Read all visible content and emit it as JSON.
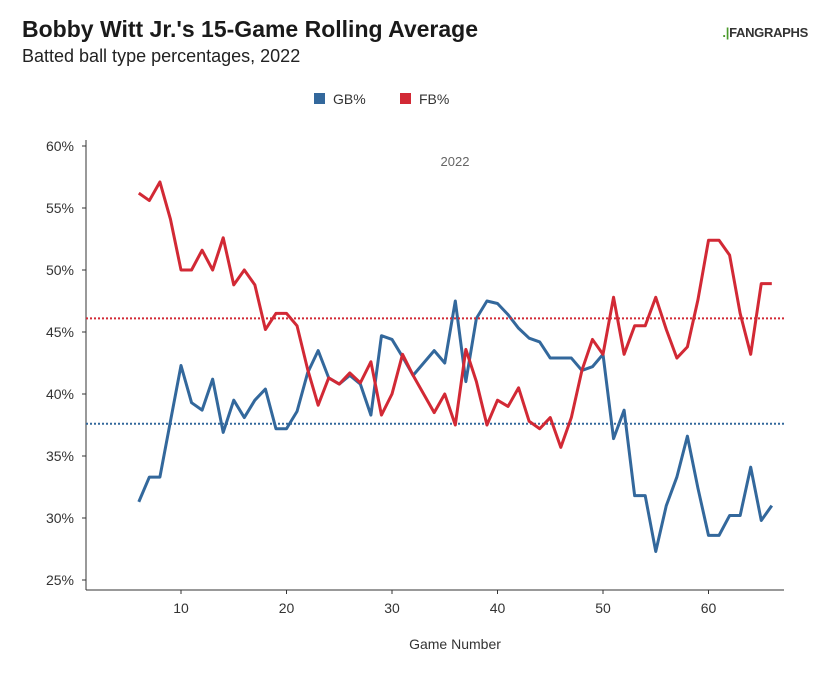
{
  "header": {
    "title": "Bobby Witt Jr.'s 15-Game Rolling Average",
    "subtitle": "Batted ball type percentages, 2022",
    "logo": "FANGRAPHS"
  },
  "chart_data": {
    "type": "line",
    "title": "Bobby Witt Jr.'s 15-Game Rolling Average",
    "subtitle": "Batted ball type percentages, 2022",
    "annotation": "2022",
    "xlabel": "Game Number",
    "ylabel": "",
    "xlim": [
      1,
      67
    ],
    "ylim": [
      24,
      61
    ],
    "xticks": [
      10,
      20,
      30,
      40,
      50,
      60
    ],
    "yticks": [
      25,
      30,
      35,
      40,
      45,
      50,
      55,
      60
    ],
    "ytick_labels": [
      "25%",
      "30%",
      "35%",
      "40%",
      "45%",
      "50%",
      "55%",
      "60%"
    ],
    "legend_position": "top",
    "x": [
      6,
      7,
      8,
      9,
      10,
      11,
      12,
      13,
      14,
      15,
      16,
      17,
      18,
      19,
      20,
      21,
      22,
      23,
      24,
      25,
      26,
      27,
      28,
      29,
      30,
      31,
      32,
      33,
      34,
      35,
      36,
      37,
      38,
      39,
      40,
      41,
      42,
      43,
      44,
      45,
      46,
      47,
      48,
      49,
      50,
      51,
      52,
      53,
      54,
      55,
      56,
      57,
      58,
      59,
      60,
      61,
      62,
      63,
      64,
      65,
      66
    ],
    "series": [
      {
        "name": "GB%",
        "color": "#33689c",
        "average": 37.6,
        "values": [
          31.3,
          33.3,
          33.3,
          37.8,
          42.3,
          39.3,
          38.7,
          41.2,
          36.9,
          39.5,
          38.1,
          39.5,
          40.4,
          37.2,
          37.2,
          38.6,
          41.7,
          43.5,
          41.3,
          40.8,
          41.5,
          40.8,
          38.3,
          44.7,
          44.4,
          43.0,
          41.5,
          42.5,
          43.5,
          42.5,
          47.5,
          41.0,
          46.1,
          47.5,
          47.3,
          46.4,
          45.3,
          44.5,
          44.2,
          42.9,
          42.9,
          42.9,
          41.9,
          42.2,
          43.2,
          36.4,
          38.7,
          31.8,
          31.8,
          27.3,
          31.0,
          33.3,
          36.6,
          32.4,
          28.6,
          28.6,
          30.2,
          30.2,
          34.1,
          29.8,
          31.0
        ]
      },
      {
        "name": "FB%",
        "color": "#d22935",
        "average": 46.1,
        "values": [
          56.2,
          55.6,
          57.1,
          54.1,
          50.0,
          50.0,
          51.6,
          50.0,
          52.6,
          48.8,
          50.0,
          48.8,
          45.2,
          46.5,
          46.5,
          45.5,
          42.0,
          39.1,
          41.3,
          40.8,
          41.7,
          40.9,
          42.6,
          38.3,
          40.0,
          43.2,
          41.5,
          40.0,
          38.5,
          40.0,
          37.5,
          43.6,
          41.0,
          37.5,
          39.5,
          39.0,
          40.5,
          37.8,
          37.2,
          38.1,
          35.7,
          38.1,
          41.9,
          44.4,
          43.2,
          47.8,
          43.2,
          45.5,
          45.5,
          47.8,
          45.2,
          42.9,
          43.8,
          47.6,
          52.4,
          52.4,
          51.2,
          46.5,
          43.2,
          48.9,
          48.9
        ]
      }
    ]
  }
}
